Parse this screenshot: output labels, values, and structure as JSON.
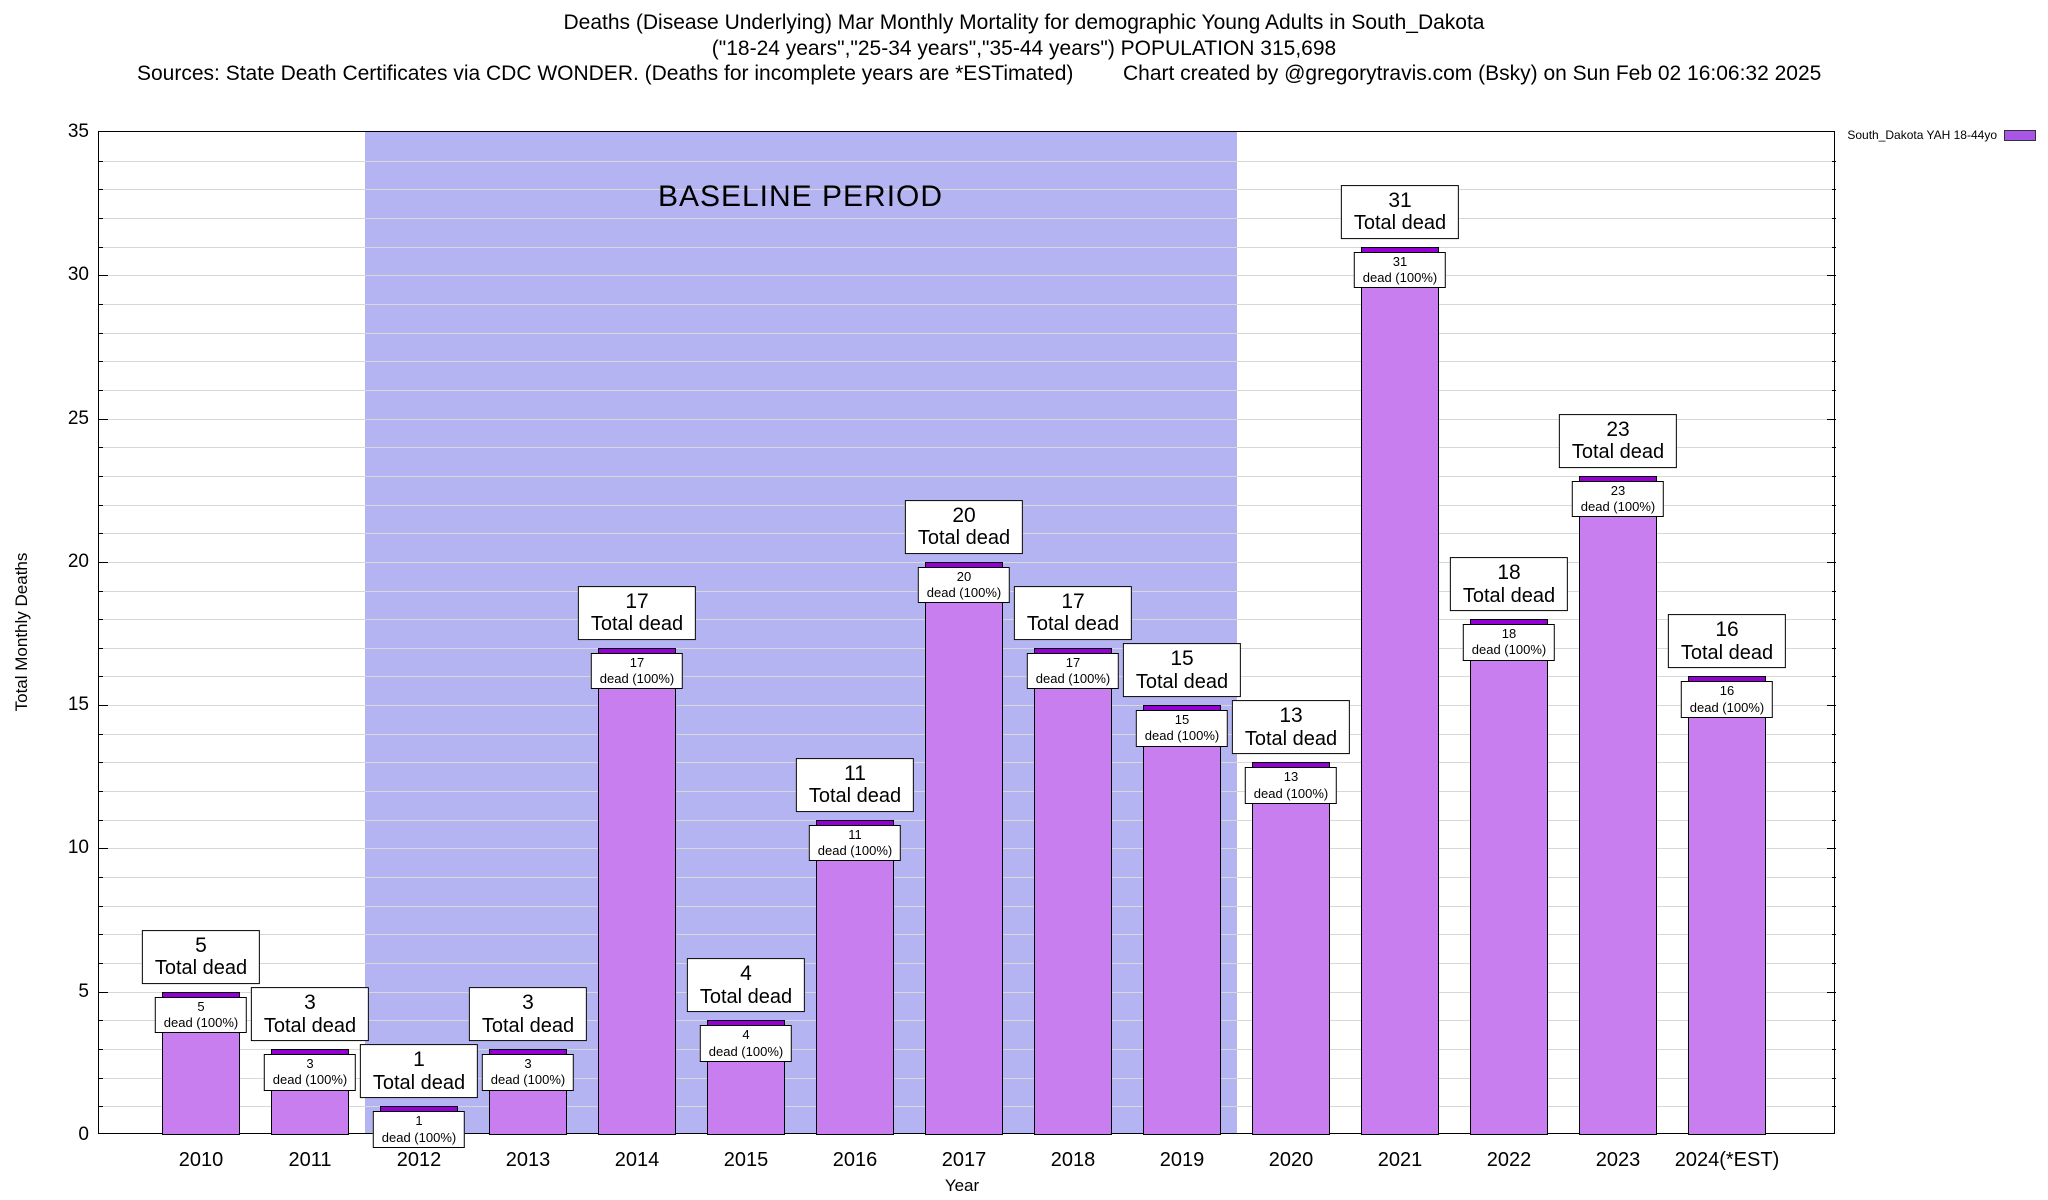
{
  "legend": {
    "label": "South_Dakota YAH 18-44yo"
  },
  "colors": {
    "bar_fill": "#c97ef0",
    "bar_cap": "#9400d3",
    "baseline_band": "#b4b4f2",
    "gridline": "#d8d8d8",
    "legend_swatch": "#a855e8"
  },
  "chart_data": {
    "type": "bar",
    "title": "Deaths (Disease Underlying) Mar Monthly Mortality for demographic Young Adults in South_Dakota",
    "subtitle": "(\"18-24 years\",\"25-34 years\",\"35-44 years\") POPULATION 315,698",
    "sources_note": "Sources: State Death Certificates via CDC WONDER. (Deaths for incomplete years are *ESTimated)",
    "credit": "Chart created by @gregorytravis.com (Bsky) on Sun Feb 02 16:06:32 2025",
    "xlabel": "Year",
    "ylabel": "Total Monthly Deaths",
    "ylim": [
      0,
      35
    ],
    "ytick_step": 5,
    "grid": "horizontal lines every 1 unit",
    "legend_position": "top-right",
    "categories": [
      "2010",
      "2011",
      "2012",
      "2013",
      "2014",
      "2015",
      "2016",
      "2017",
      "2018",
      "2019",
      "2020",
      "2021",
      "2022",
      "2023",
      "2024(*EST)"
    ],
    "values": [
      5,
      3,
      1,
      3,
      17,
      4,
      11,
      20,
      17,
      15,
      13,
      31,
      18,
      23,
      16
    ],
    "bar_labels": {
      "top": "Total dead",
      "inner": "dead (100%)"
    },
    "baseline_region": {
      "label": "BASELINE PERIOD",
      "start_category": "2012",
      "end_category": "2019"
    }
  }
}
